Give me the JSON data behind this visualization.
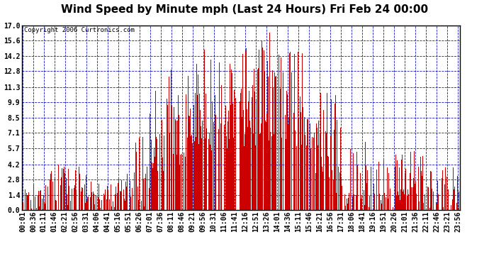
{
  "title": "Wind Speed by Minute mph (Last 24 Hours) Fri Feb 24 00:00",
  "copyright": "Copyright 2006 Curtronics.com",
  "ylabel_values": [
    0.0,
    1.4,
    2.8,
    4.2,
    5.7,
    7.1,
    8.5,
    9.9,
    11.3,
    12.8,
    14.2,
    15.6,
    17.0
  ],
  "ylim": [
    0.0,
    17.0
  ],
  "bar_color": "#cc0000",
  "background_color": "#ffffff",
  "grid_color": "#0000bb",
  "border_color": "#000000",
  "title_fontsize": 11,
  "copyright_fontsize": 6.5,
  "tick_fontsize": 7,
  "total_minutes": 1440,
  "x_tick_labels": [
    "00:01",
    "00:36",
    "01:11",
    "01:46",
    "02:21",
    "02:56",
    "03:31",
    "04:06",
    "04:41",
    "05:16",
    "05:51",
    "06:26",
    "07:01",
    "07:36",
    "08:11",
    "08:46",
    "09:21",
    "09:56",
    "10:31",
    "11:06",
    "11:41",
    "12:16",
    "12:51",
    "13:26",
    "14:01",
    "14:36",
    "15:11",
    "15:46",
    "16:21",
    "16:56",
    "17:31",
    "18:06",
    "18:41",
    "19:16",
    "19:51",
    "20:26",
    "21:01",
    "21:36",
    "22:11",
    "22:46",
    "23:21",
    "23:56"
  ],
  "segments": [
    [
      0,
      90,
      0.0,
      1.8,
      2.5,
      0.55,
      0.45
    ],
    [
      90,
      210,
      0.0,
      2.5,
      4.2,
      0.6,
      0.4
    ],
    [
      210,
      330,
      0.0,
      1.8,
      3.0,
      0.55,
      0.45
    ],
    [
      330,
      420,
      0.0,
      3.5,
      7.0,
      0.55,
      0.45
    ],
    [
      420,
      480,
      2.0,
      7.0,
      11.0,
      0.65,
      0.3
    ],
    [
      480,
      570,
      4.0,
      9.5,
      13.0,
      0.7,
      0.25
    ],
    [
      570,
      660,
      5.0,
      11.0,
      15.0,
      0.72,
      0.2
    ],
    [
      660,
      780,
      5.0,
      11.5,
      15.5,
      0.72,
      0.2
    ],
    [
      780,
      870,
      5.0,
      12.5,
      17.0,
      0.75,
      0.18
    ],
    [
      870,
      930,
      4.5,
      11.5,
      16.5,
      0.72,
      0.2
    ],
    [
      930,
      990,
      3.0,
      9.0,
      13.0,
      0.68,
      0.25
    ],
    [
      990,
      1050,
      1.5,
      7.0,
      11.0,
      0.62,
      0.3
    ],
    [
      1050,
      1080,
      0.0,
      1.5,
      3.5,
      0.5,
      0.5
    ],
    [
      1080,
      1170,
      0.0,
      2.5,
      6.5,
      0.58,
      0.42
    ],
    [
      1170,
      1320,
      0.0,
      2.5,
      5.5,
      0.6,
      0.4
    ],
    [
      1320,
      1440,
      0.0,
      2.0,
      4.0,
      0.58,
      0.42
    ]
  ]
}
